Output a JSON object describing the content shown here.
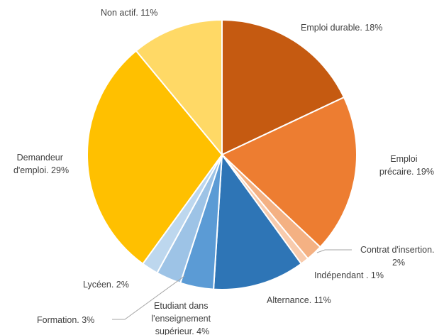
{
  "chart_data": {
    "type": "pie",
    "start_angle_deg": 0,
    "direction": "clockwise",
    "slices": [
      {
        "label": "Emploi durable",
        "value": 18,
        "display": "Emploi durable. 18%",
        "color": "#c55a11"
      },
      {
        "label": "Emploi précaire",
        "value": 19,
        "display": "Emploi précaire. 19%",
        "color": "#ed7d31"
      },
      {
        "label": "Contrat d'insertion",
        "value": 2,
        "display": "Contrat d'insertion. 2%",
        "color": "#f4b183"
      },
      {
        "label": "Indépendant",
        "value": 1,
        "display": "Indépendant . 1%",
        "color": "#f8cbad"
      },
      {
        "label": "Alternance",
        "value": 11,
        "display": "Alternance. 11%",
        "color": "#2e75b6"
      },
      {
        "label": "Etudiant dans l'enseignement supérieur",
        "value": 4,
        "display": "Etudiant dans l'enseignement supérieur. 4%",
        "color": "#5b9bd5"
      },
      {
        "label": "Formation",
        "value": 3,
        "display": "Formation. 3%",
        "color": "#9dc3e6"
      },
      {
        "label": "Lycéen",
        "value": 2,
        "display": "Lycéen. 2%",
        "color": "#bdd7ee"
      },
      {
        "label": "Demandeur d'emploi",
        "value": 29,
        "display": "Demandeur d'emploi. 29%",
        "color": "#ffc000"
      },
      {
        "label": "Non actif",
        "value": 11,
        "display": "Non actif. 11%",
        "color": "#ffd966"
      }
    ]
  }
}
